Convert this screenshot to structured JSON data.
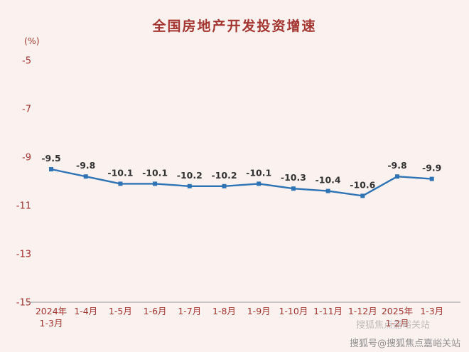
{
  "chart_data": {
    "type": "line",
    "title": "全国房地产开发投资增速",
    "unit_label": "(%)",
    "categories": [
      [
        "2024年",
        "1-3月"
      ],
      [
        "1-4月"
      ],
      [
        "1-5月"
      ],
      [
        "1-6月"
      ],
      [
        "1-7月"
      ],
      [
        "1-8月"
      ],
      [
        "1-9月"
      ],
      [
        "1-10月"
      ],
      [
        "1-11月"
      ],
      [
        "1-12月"
      ],
      [
        "2025年",
        "1-2月"
      ],
      [
        "1-3月"
      ]
    ],
    "values": [
      -9.5,
      -9.8,
      -10.1,
      -10.1,
      -10.2,
      -10.2,
      -10.1,
      -10.3,
      -10.4,
      -10.6,
      -9.8,
      -9.9
    ],
    "data_labels": [
      "-9.5",
      "-9.8",
      "-10.1",
      "-10.1",
      "-10.2",
      "-10.2",
      "-10.1",
      "-10.3",
      "-10.4",
      "-10.6",
      "-9.8",
      "-9.9"
    ],
    "ylim": [
      -15,
      -5
    ],
    "yticks": [
      -5,
      -7,
      -9,
      -11,
      -13,
      -15
    ],
    "xlabel": "",
    "ylabel": "(%)",
    "grid": false,
    "legend": "none",
    "line_color": "#2e74b5",
    "marker": "square",
    "title_color": "#a3342f",
    "axis_text_color": "#a3342f",
    "axis_line_color": "#9b9b9b",
    "data_label_color": "#333333",
    "background_color": "#fbf2f0",
    "watermark_color": "#8f8f8f"
  },
  "watermark": {
    "text": "搜狐号@搜狐焦点嘉峪关站",
    "faint_text": "搜狐焦点嘉峪关站"
  }
}
